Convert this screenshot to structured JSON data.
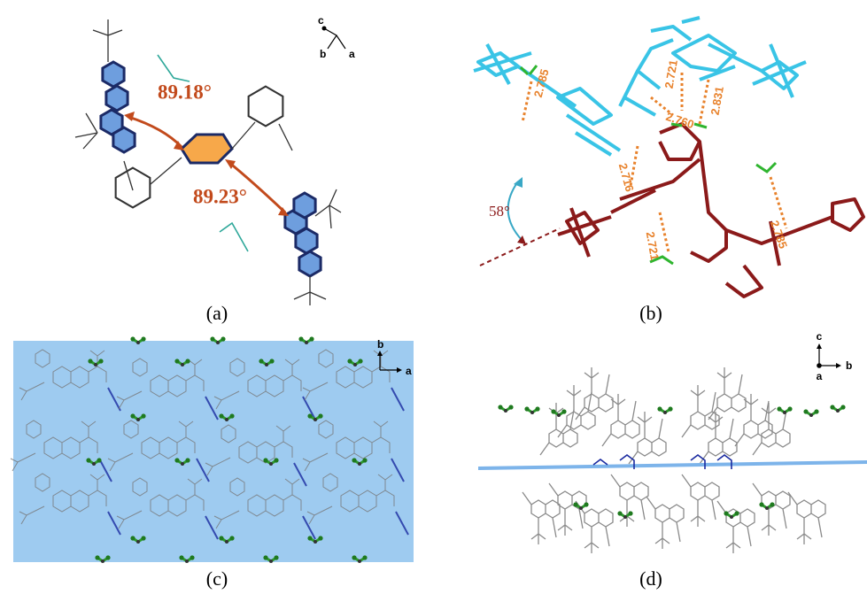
{
  "panels": [
    {
      "label": "(a)",
      "angles": [
        "89.18°",
        "89.23°"
      ],
      "axes": [
        "c",
        "b",
        "a"
      ]
    },
    {
      "label": "(b)",
      "angle": "58°",
      "distances": [
        "2.785",
        "2.721",
        "2.760",
        "2.831",
        "2.716",
        "2.721",
        "2.785"
      ]
    },
    {
      "label": "(c)",
      "axes": [
        "b",
        "a"
      ]
    },
    {
      "label": "(d)",
      "axes": [
        "c",
        "b",
        "a"
      ]
    }
  ]
}
